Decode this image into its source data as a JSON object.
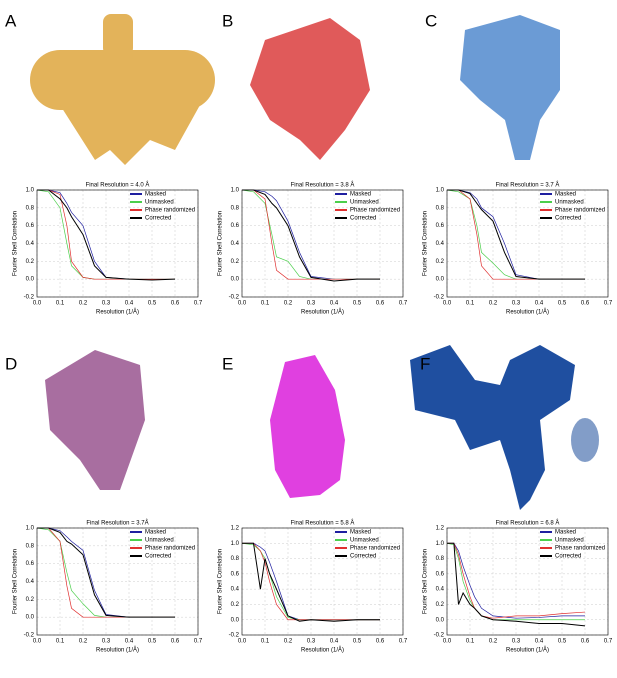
{
  "chart_data": [
    {
      "type": "line",
      "label": "A",
      "title": "Final Resolution = 4.0 Å",
      "xlabel": "Resolution  (1/Å)",
      "ylabel": "Fourier Shell Correlation",
      "x": [
        0,
        0.05,
        0.1,
        0.13,
        0.15,
        0.2,
        0.25,
        0.3,
        0.4,
        0.5,
        0.6
      ],
      "xlim": [
        0,
        0.7
      ],
      "ylim": [
        -0.2,
        1.0
      ],
      "xticks": [
        {
          "value": 0,
          "label": "0.0"
        },
        {
          "value": 0.1,
          "label": "0.1"
        },
        {
          "value": 0.2,
          "label": "0.2"
        },
        {
          "value": 0.3,
          "label": "0.3"
        },
        {
          "value": 0.4,
          "label": "0.4"
        },
        {
          "value": 0.5,
          "label": "0.5"
        },
        {
          "value": 0.6,
          "label": "0.6"
        },
        {
          "value": 0.7,
          "label": "0.7"
        }
      ],
      "yticks": [
        -0.2,
        {
          "value": 0,
          "label": "0.0"
        },
        0.2,
        0.4,
        0.6,
        0.8,
        {
          "value": 1,
          "label": "1.0"
        }
      ],
      "series": [
        {
          "name": "Masked",
          "color": "#1f1fa0",
          "values": [
            1,
            1,
            0.97,
            0.85,
            0.75,
            0.6,
            0.2,
            0.02,
            0,
            0,
            0
          ]
        },
        {
          "name": "Unmasked",
          "color": "#4ccf4c",
          "values": [
            1,
            0.98,
            0.8,
            0.4,
            0.15,
            0.02,
            0,
            0,
            0,
            0,
            0
          ]
        },
        {
          "name": "Phase randomized",
          "color": "#e03030",
          "values": [
            1,
            1,
            0.95,
            0.6,
            0.2,
            0.02,
            0,
            0,
            0,
            0,
            0
          ]
        },
        {
          "name": "Corrected",
          "color": "#000000",
          "values": [
            1,
            1,
            0.9,
            0.8,
            0.7,
            0.5,
            0.15,
            0.02,
            0,
            -0.01,
            0
          ]
        }
      ]
    },
    {
      "type": "line",
      "label": "B",
      "title": "Final Resolution = 3.8 Å",
      "xlabel": "Resolution  (1/Å)",
      "ylabel": "Fourier Shell Correlation",
      "x": [
        0,
        0.05,
        0.1,
        0.13,
        0.15,
        0.2,
        0.25,
        0.3,
        0.4,
        0.5,
        0.6
      ],
      "xlim": [
        0,
        0.7
      ],
      "ylim": [
        -0.2,
        1.0
      ],
      "xticks": [
        {
          "value": 0,
          "label": "0.0"
        },
        {
          "value": 0.1,
          "label": "0.1"
        },
        {
          "value": 0.2,
          "label": "0.2"
        },
        {
          "value": 0.3,
          "label": "0.3"
        },
        {
          "value": 0.4,
          "label": "0.4"
        },
        {
          "value": 0.5,
          "label": "0.5"
        },
        {
          "value": 0.6,
          "label": "0.6"
        },
        {
          "value": 0.7,
          "label": "0.7"
        }
      ],
      "yticks": [
        -0.2,
        {
          "value": 0,
          "label": "0.0"
        },
        0.2,
        0.4,
        0.6,
        0.8,
        {
          "value": 1,
          "label": "1.0"
        }
      ],
      "series": [
        {
          "name": "Masked",
          "color": "#1f1fa0",
          "values": [
            1,
            1,
            0.98,
            0.93,
            0.88,
            0.65,
            0.3,
            0.03,
            0,
            0,
            0
          ]
        },
        {
          "name": "Unmasked",
          "color": "#4ccf4c",
          "values": [
            1,
            0.98,
            0.85,
            0.5,
            0.25,
            0.2,
            0.03,
            0,
            0,
            0,
            0
          ]
        },
        {
          "name": "Phase randomized",
          "color": "#e03030",
          "values": [
            1,
            1,
            0.9,
            0.4,
            0.1,
            0,
            0,
            0,
            0,
            0,
            0
          ]
        },
        {
          "name": "Corrected",
          "color": "#000000",
          "values": [
            1,
            1,
            0.95,
            0.85,
            0.8,
            0.6,
            0.25,
            0.02,
            -0.02,
            0,
            0
          ]
        }
      ]
    },
    {
      "type": "line",
      "label": "C",
      "title": "Final Resolution = 3.7 Å",
      "xlabel": "Resolution  (1/Å)",
      "ylabel": "Fourier Shell Correlation",
      "x": [
        0,
        0.05,
        0.1,
        0.13,
        0.15,
        0.2,
        0.25,
        0.3,
        0.4,
        0.5,
        0.6
      ],
      "xlim": [
        0,
        0.7
      ],
      "ylim": [
        -0.2,
        1.0
      ],
      "xticks": [
        {
          "value": 0,
          "label": "0.0"
        },
        {
          "value": 0.1,
          "label": "0.1"
        },
        {
          "value": 0.2,
          "label": "0.2"
        },
        {
          "value": 0.3,
          "label": "0.3"
        },
        {
          "value": 0.4,
          "label": "0.4"
        },
        {
          "value": 0.5,
          "label": "0.5"
        },
        {
          "value": 0.6,
          "label": "0.6"
        },
        {
          "value": 0.7,
          "label": "0.7"
        }
      ],
      "yticks": [
        -0.2,
        {
          "value": 0,
          "label": "0.0"
        },
        0.2,
        0.4,
        0.6,
        0.8,
        {
          "value": 1,
          "label": "1.0"
        }
      ],
      "series": [
        {
          "name": "Masked",
          "color": "#1f1fa0",
          "values": [
            1,
            1,
            0.97,
            0.9,
            0.8,
            0.7,
            0.4,
            0.05,
            0,
            0,
            0
          ]
        },
        {
          "name": "Unmasked",
          "color": "#4ccf4c",
          "values": [
            1,
            0.98,
            0.9,
            0.6,
            0.3,
            0.18,
            0.05,
            0,
            0,
            0,
            0
          ]
        },
        {
          "name": "Phase randomized",
          "color": "#e03030",
          "values": [
            1,
            1,
            0.9,
            0.5,
            0.15,
            0,
            0,
            0,
            0,
            0,
            0
          ]
        },
        {
          "name": "Corrected",
          "color": "#000000",
          "values": [
            1,
            1,
            0.96,
            0.85,
            0.78,
            0.65,
            0.3,
            0.03,
            0,
            0,
            0
          ]
        }
      ]
    },
    {
      "type": "line",
      "label": "D",
      "title": "Final Resolution = 3.7Å",
      "xlabel": "Resolution  (1/Å)",
      "ylabel": "Fourier Shell Correlation",
      "x": [
        0,
        0.05,
        0.1,
        0.13,
        0.15,
        0.2,
        0.25,
        0.3,
        0.4,
        0.5,
        0.6
      ],
      "xlim": [
        0,
        0.7
      ],
      "ylim": [
        -0.2,
        1.0
      ],
      "xticks": [
        {
          "value": 0,
          "label": "0.0"
        },
        {
          "value": 0.1,
          "label": "0.1"
        },
        {
          "value": 0.2,
          "label": "0.2"
        },
        {
          "value": 0.3,
          "label": "0.3"
        },
        {
          "value": 0.4,
          "label": "0.4"
        },
        {
          "value": 0.5,
          "label": "0.5"
        },
        {
          "value": 0.6,
          "label": "0.6"
        },
        {
          "value": 0.7,
          "label": "0.7"
        }
      ],
      "yticks": [
        -0.2,
        {
          "value": 0,
          "label": "0.0"
        },
        0.2,
        0.4,
        0.6,
        0.8,
        {
          "value": 1,
          "label": "1.0"
        }
      ],
      "series": [
        {
          "name": "Masked",
          "color": "#1f1fa0",
          "values": [
            1,
            1,
            0.97,
            0.9,
            0.85,
            0.75,
            0.3,
            0.03,
            0,
            0,
            0
          ]
        },
        {
          "name": "Unmasked",
          "color": "#4ccf4c",
          "values": [
            1,
            0.98,
            0.85,
            0.5,
            0.3,
            0.15,
            0.02,
            0,
            0,
            0,
            0
          ]
        },
        {
          "name": "Phase randomized",
          "color": "#e03030",
          "values": [
            1,
            1,
            0.85,
            0.35,
            0.1,
            0,
            0,
            0,
            0,
            0,
            0
          ]
        },
        {
          "name": "Corrected",
          "color": "#000000",
          "values": [
            1,
            1,
            0.95,
            0.85,
            0.82,
            0.7,
            0.25,
            0.02,
            0,
            0,
            0
          ]
        }
      ]
    },
    {
      "type": "line",
      "label": "E",
      "title": "Final Resolution = 5.8 Å",
      "xlabel": "Resolution  (1/Å)",
      "ylabel": "Fourier Shell Correlation",
      "x": [
        0,
        0.05,
        0.08,
        0.1,
        0.12,
        0.15,
        0.2,
        0.25,
        0.3,
        0.4,
        0.5,
        0.6
      ],
      "xlim": [
        0,
        0.7
      ],
      "ylim": [
        -0.2,
        1.2
      ],
      "xticks": [
        {
          "value": 0,
          "label": "0.0"
        },
        {
          "value": 0.1,
          "label": "0.1"
        },
        {
          "value": 0.2,
          "label": "0.2"
        },
        {
          "value": 0.3,
          "label": "0.3"
        },
        {
          "value": 0.4,
          "label": "0.4"
        },
        {
          "value": 0.5,
          "label": "0.5"
        },
        {
          "value": 0.6,
          "label": "0.6"
        },
        {
          "value": 0.7,
          "label": "0.7"
        }
      ],
      "yticks": [
        -0.2,
        {
          "value": 0,
          "label": "0.0"
        },
        0.2,
        0.4,
        0.6,
        0.8,
        {
          "value": 1,
          "label": "1.0"
        },
        1.2
      ],
      "series": [
        {
          "name": "Masked",
          "color": "#1f1fa0",
          "values": [
            1,
            1,
            0.95,
            0.9,
            0.75,
            0.5,
            0.05,
            0,
            0,
            0,
            0,
            0
          ]
        },
        {
          "name": "Unmasked",
          "color": "#4ccf4c",
          "values": [
            1,
            0.98,
            0.9,
            0.8,
            0.6,
            0.3,
            0.03,
            0,
            0,
            0,
            0,
            0
          ]
        },
        {
          "name": "Phase randomized",
          "color": "#e03030",
          "values": [
            1,
            1,
            0.9,
            0.75,
            0.5,
            0.2,
            0,
            0,
            0,
            0,
            0,
            0
          ]
        },
        {
          "name": "Corrected",
          "color": "#000000",
          "values": [
            1,
            1,
            0.4,
            0.8,
            0.6,
            0.4,
            0.05,
            -0.02,
            0,
            -0.02,
            0,
            0
          ]
        }
      ]
    },
    {
      "type": "line",
      "label": "F",
      "title": "Final Resolution = 6.8 Å",
      "xlabel": "Resolution  (1/Å)",
      "ylabel": "Fourier Shell Correlation",
      "x": [
        0,
        0.03,
        0.05,
        0.07,
        0.1,
        0.12,
        0.15,
        0.2,
        0.3,
        0.4,
        0.5,
        0.6
      ],
      "xlim": [
        0,
        0.7
      ],
      "ylim": [
        -0.2,
        1.2
      ],
      "xticks": [
        {
          "value": 0,
          "label": "0.0"
        },
        {
          "value": 0.1,
          "label": "0.1"
        },
        {
          "value": 0.2,
          "label": "0.2"
        },
        {
          "value": 0.3,
          "label": "0.3"
        },
        {
          "value": 0.4,
          "label": "0.4"
        },
        {
          "value": 0.5,
          "label": "0.5"
        },
        {
          "value": 0.6,
          "label": "0.6"
        },
        {
          "value": 0.7,
          "label": "0.7"
        }
      ],
      "yticks": [
        -0.2,
        {
          "value": 0,
          "label": "0.0"
        },
        0.2,
        0.4,
        0.6,
        0.8,
        {
          "value": 1,
          "label": "1.0"
        },
        1.2
      ],
      "series": [
        {
          "name": "Masked",
          "color": "#1f1fa0",
          "values": [
            1,
            1,
            0.9,
            0.7,
            0.45,
            0.3,
            0.15,
            0.05,
            0.02,
            0.03,
            0.05,
            0.05
          ]
        },
        {
          "name": "Unmasked",
          "color": "#4ccf4c",
          "values": [
            1,
            0.98,
            0.8,
            0.5,
            0.25,
            0.15,
            0.05,
            0,
            0,
            0,
            0,
            0
          ]
        },
        {
          "name": "Phase randomized",
          "color": "#e03030",
          "values": [
            1,
            1,
            0.85,
            0.6,
            0.3,
            0.15,
            0.05,
            0.02,
            0.05,
            0.05,
            0.08,
            0.1
          ]
        },
        {
          "name": "Corrected",
          "color": "#000000",
          "values": [
            1,
            1,
            0.2,
            0.35,
            0.2,
            0.15,
            0.05,
            0,
            -0.02,
            -0.05,
            -0.05,
            -0.08
          ]
        }
      ]
    }
  ]
}
